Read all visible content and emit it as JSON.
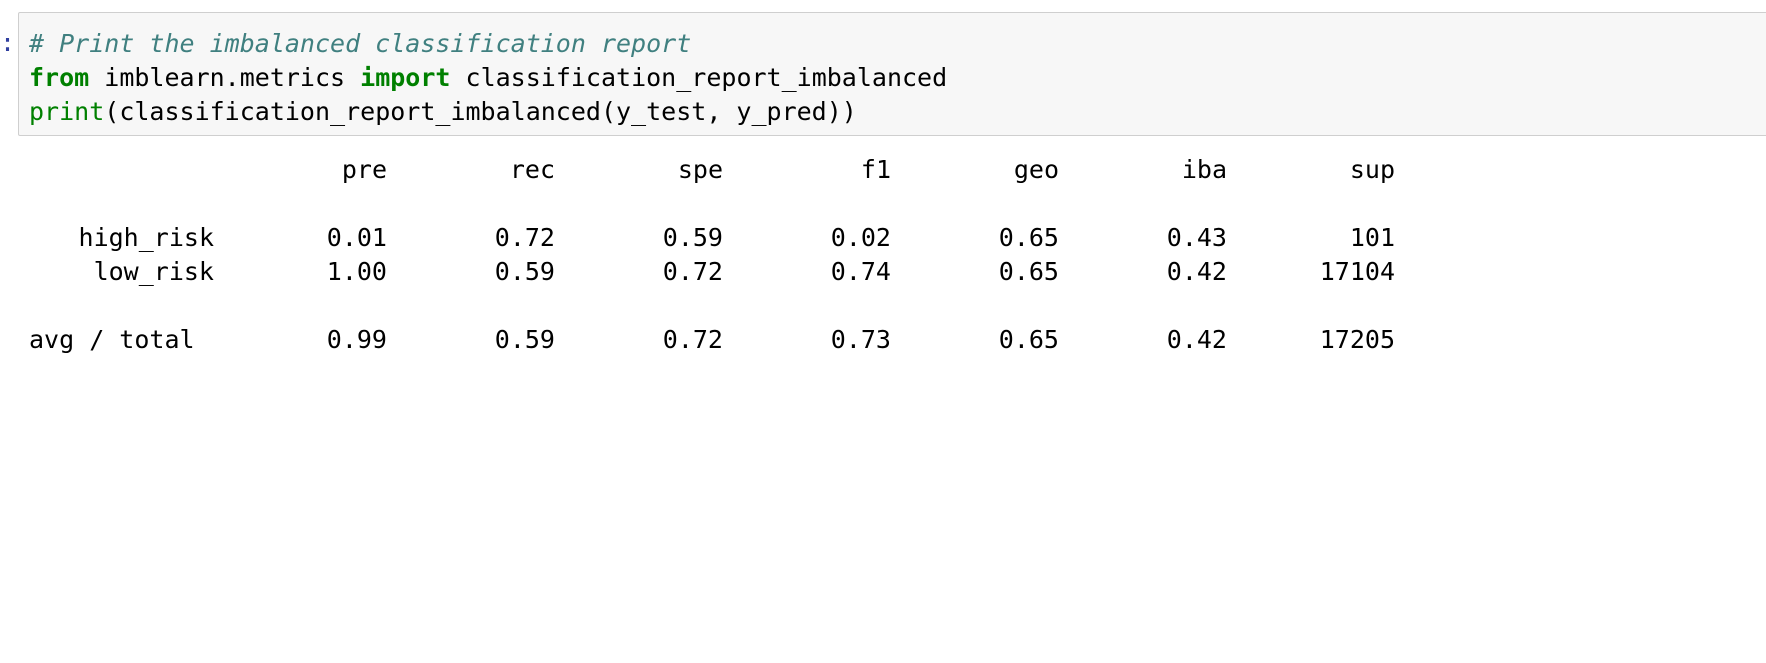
{
  "cell": {
    "prompt": ":",
    "code": {
      "comment": "# Print the imbalanced classification report",
      "line2": {
        "kw_from": "from",
        "module": " imblearn.metrics ",
        "kw_import": "import",
        "name": " classification_report_imbalanced"
      },
      "line3": {
        "builtin": "print",
        "rest": "(classification_report_imbalanced(y_test, y_pred))"
      }
    }
  },
  "report": {
    "headers": [
      "pre",
      "rec",
      "spe",
      "f1",
      "geo",
      "iba",
      "sup"
    ],
    "rows": [
      {
        "label": "high_risk",
        "values": [
          "0.01",
          "0.72",
          "0.59",
          "0.02",
          "0.65",
          "0.43",
          "101"
        ]
      },
      {
        "label": "low_risk",
        "values": [
          "1.00",
          "0.59",
          "0.72",
          "0.74",
          "0.65",
          "0.42",
          "17104"
        ]
      }
    ],
    "total": {
      "label": "avg / total",
      "values": [
        "0.99",
        "0.59",
        "0.72",
        "0.73",
        "0.65",
        "0.42",
        "17205"
      ]
    }
  }
}
